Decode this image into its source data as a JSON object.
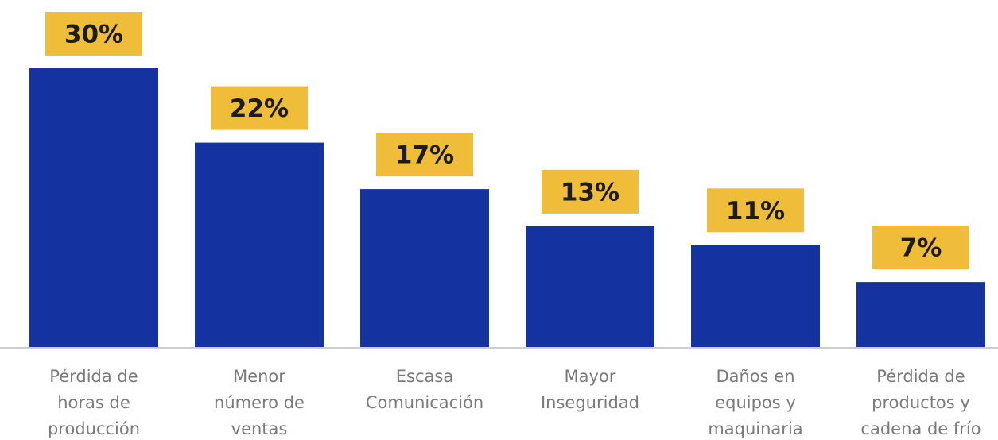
{
  "chart_data": {
    "type": "bar",
    "categories": [
      [
        "Pérdida de",
        "horas de",
        "producción"
      ],
      [
        "Menor",
        "número de",
        "ventas"
      ],
      [
        "Escasa",
        "Comunicación"
      ],
      [
        "Mayor",
        "Inseguridad"
      ],
      [
        "Daños en",
        "equipos y",
        "maquinaria"
      ],
      [
        "Pérdida de",
        "productos y",
        "cadena de frío"
      ]
    ],
    "values": [
      30,
      22,
      17,
      13,
      11,
      7
    ],
    "data_labels": [
      "30%",
      "22%",
      "17%",
      "13%",
      "11%",
      "7%"
    ],
    "title": "",
    "xlabel": "",
    "ylabel": "",
    "ylim": [
      0,
      30
    ],
    "grid": false,
    "legend": "none",
    "colors": {
      "bar": "#1533a0",
      "label_box": "#f0bd3a",
      "label_text": "#1c1c1c",
      "category_text": "#7a7a7a",
      "axis": "#cfcfcf"
    }
  }
}
